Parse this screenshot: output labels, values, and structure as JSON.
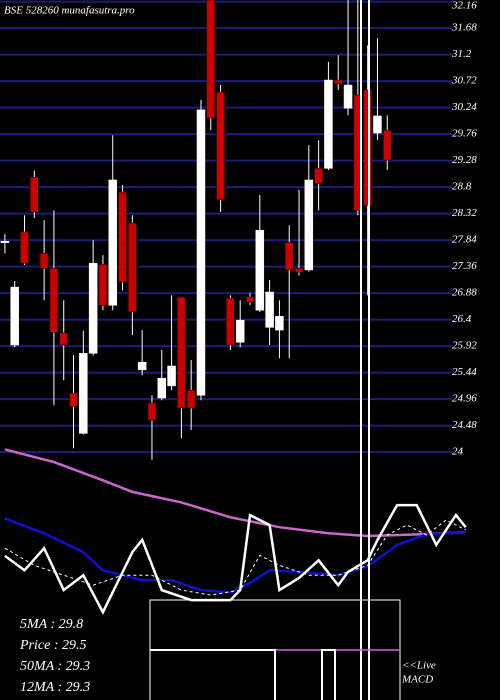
{
  "chart_data": {
    "type": "candlestick",
    "title": "BSE 528260 munafasutra.pro",
    "xlim": [
      -0.5,
      50.5
    ],
    "ylim": [
      19.51,
      32.19
    ],
    "yticks": [
      32.16,
      31.68,
      31.2,
      30.72,
      30.24,
      29.76,
      29.28,
      28.8,
      28.32,
      27.84,
      27.36,
      26.88,
      26.4,
      25.92,
      25.44,
      24.96,
      24.48,
      24
    ],
    "grid": true,
    "up_color": "#ffffff",
    "down_color": "#cc0000",
    "grid_color": "#1c1c7a",
    "open": [
      27.8,
      25.94,
      27.99,
      28.98,
      27.6,
      27.33,
      26.16,
      25.07,
      24.34,
      25.79,
      27.4,
      26.66,
      28.71,
      28.15,
      25.49,
      24.89,
      24.98,
      25.2,
      26.81,
      25.12,
      25.03,
      32.19,
      30.52,
      26.79,
      25.99,
      26.81,
      26.57,
      26.26,
      26.21,
      27.8,
      27.33,
      27.3,
      29.14,
      29.14,
      30.74,
      30.23,
      30.47,
      30.56,
      29.78,
      29.83
    ],
    "high": [
      27.95,
      27.1,
      28.29,
      29.1,
      28.2,
      28.38,
      26.75,
      25.76,
      26.2,
      27.84,
      27.57,
      29.74,
      28.84,
      28.29,
      26.21,
      25.03,
      25.85,
      26.84,
      26.81,
      25.67,
      30.38,
      32.19,
      30.65,
      26.84,
      26.75,
      26.88,
      28.66,
      27.12,
      26.75,
      28.11,
      28.75,
      29.56,
      29.65,
      31.07,
      31.19,
      32.19,
      32.19,
      31.37,
      31.5,
      30.1
    ],
    "low": [
      27.6,
      25.9,
      27.39,
      28.24,
      26.75,
      24.85,
      25.3,
      24.07,
      24.32,
      25.75,
      26.57,
      26.57,
      26.93,
      26.12,
      25.39,
      23.86,
      24.94,
      25.12,
      24.25,
      24.4,
      24.94,
      29.83,
      28.35,
      25.85,
      25.9,
      26.66,
      26.54,
      25.94,
      25.7,
      25.7,
      27.2,
      27.27,
      28.38,
      29.11,
      30.56,
      30.1,
      28.29,
      26.84,
      29.65,
      29.11
    ],
    "close": [
      27.82,
      26.99,
      27.42,
      28.35,
      27.33,
      26.17,
      25.94,
      24.83,
      25.79,
      27.42,
      26.66,
      28.93,
      27.08,
      26.54,
      25.63,
      24.58,
      25.34,
      25.56,
      24.8,
      24.8,
      30.2,
      30.05,
      28.57,
      25.94,
      26.39,
      26.72,
      28.02,
      26.9,
      26.46,
      27.3,
      27.26,
      28.93,
      28.87,
      30.74,
      30.67,
      30.65,
      28.38,
      28.47,
      30.09,
      29.29
    ],
    "series": [
      {
        "color": "#cc66cc",
        "x": [
          0,
          5,
          10,
          13,
          18,
          23,
          28,
          33,
          37,
          42,
          47
        ],
        "values": [
          24.05,
          23.82,
          23.49,
          23.28,
          23.09,
          22.82,
          22.64,
          22.53,
          22.48,
          22.51,
          22.55
        ]
      },
      {
        "color": "#1010d0",
        "x": [
          0,
          4,
          8,
          10,
          14,
          17,
          20,
          23,
          25,
          27,
          30,
          34,
          37,
          40,
          43,
          47
        ],
        "values": [
          22.8,
          22.53,
          22.19,
          21.86,
          21.68,
          21.68,
          21.5,
          21.46,
          21.63,
          21.86,
          21.83,
          21.77,
          21.93,
          22.32,
          22.51,
          22.55
        ]
      },
      {
        "color": "#ffffff",
        "x": [
          0,
          2,
          4,
          6,
          8,
          10,
          13,
          14,
          16,
          19,
          23,
          24,
          25,
          27,
          28,
          30,
          32,
          34,
          35,
          37,
          38,
          40,
          42,
          44,
          46,
          47
        ],
        "values": [
          22.12,
          21.86,
          22.26,
          21.5,
          21.77,
          21.1,
          22.19,
          22.41,
          21.5,
          21.32,
          21.32,
          21.5,
          22.86,
          22.68,
          21.5,
          21.72,
          22.04,
          21.59,
          21.83,
          22.04,
          22.41,
          23.04,
          23.04,
          22.32,
          22.86,
          22.64
        ]
      },
      {
        "color": "#ffffff",
        "dashed": true,
        "x": [
          0,
          3,
          6,
          9,
          12,
          15,
          18,
          21,
          24,
          26,
          28,
          31,
          34,
          37,
          39,
          41,
          43,
          45,
          47
        ],
        "values": [
          22.26,
          21.95,
          21.77,
          21.59,
          21.77,
          21.77,
          21.5,
          21.41,
          21.5,
          22.13,
          21.95,
          21.77,
          21.77,
          21.95,
          22.5,
          22.68,
          22.5,
          22.77,
          22.59
        ]
      }
    ],
    "stats": [
      "5MA : 29.8",
      "Price : 29.5",
      "50MA : 29.3",
      "12MA : 29.3"
    ],
    "annotations": [
      "<<Live",
      "MACD"
    ]
  }
}
